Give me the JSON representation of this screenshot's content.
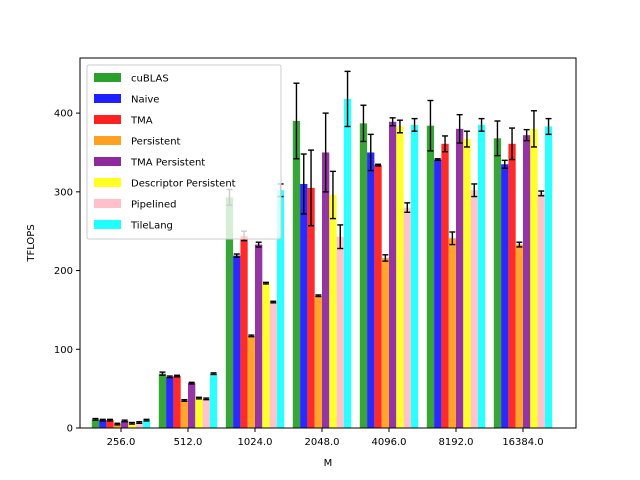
{
  "chart_data": {
    "type": "bar",
    "title": "",
    "xlabel": "M",
    "ylabel": "TFLOPS",
    "ylim": [
      0,
      470
    ],
    "yticks": [
      0,
      100,
      200,
      300,
      400
    ],
    "categories": [
      "256.0",
      "512.0",
      "1024.0",
      "2048.0",
      "4096.0",
      "8192.0",
      "16384.0"
    ],
    "legend_position": "upper-left",
    "grid": false,
    "series": [
      {
        "name": "cuBLAS",
        "color": "#2ca02c",
        "values": [
          11,
          69,
          293,
          390,
          387,
          384,
          368
        ],
        "errors": [
          1,
          2,
          10,
          48,
          23,
          32,
          22
        ]
      },
      {
        "name": "Naive",
        "color": "#1f1fff",
        "values": [
          10,
          65,
          219,
          310,
          350,
          341,
          335
        ],
        "errors": [
          1,
          1,
          2,
          38,
          23,
          1,
          5
        ]
      },
      {
        "name": "TMA",
        "color": "#ff2020",
        "values": [
          10,
          66,
          244,
          305,
          334,
          361,
          361
        ],
        "errors": [
          1,
          1,
          6,
          48,
          1,
          10,
          20
        ]
      },
      {
        "name": "Persistent",
        "color": "#ffa020",
        "values": [
          5,
          35,
          117,
          168,
          216,
          241,
          233
        ],
        "errors": [
          1,
          1,
          1,
          1,
          4,
          8,
          3
        ]
      },
      {
        "name": "TMA Persistent",
        "color": "#8e2a9e",
        "values": [
          9,
          57,
          233,
          350,
          389,
          380,
          372
        ],
        "errors": [
          1,
          1,
          3,
          50,
          5,
          18,
          7
        ]
      },
      {
        "name": "Descriptor Persistent",
        "color": "#ffff20",
        "values": [
          6,
          38,
          184,
          296,
          383,
          367,
          380
        ],
        "errors": [
          1,
          1,
          1,
          30,
          8,
          10,
          23
        ]
      },
      {
        "name": "Pipelined",
        "color": "#ffc0cb",
        "values": [
          7,
          37,
          160,
          243,
          280,
          302,
          298
        ],
        "errors": [
          1,
          1,
          1,
          15,
          6,
          8,
          3
        ]
      },
      {
        "name": "TileLang",
        "color": "#20ffff",
        "values": [
          10,
          69,
          302,
          418,
          385,
          385,
          383
        ],
        "errors": [
          1,
          1,
          8,
          35,
          8,
          8,
          10
        ]
      }
    ]
  }
}
